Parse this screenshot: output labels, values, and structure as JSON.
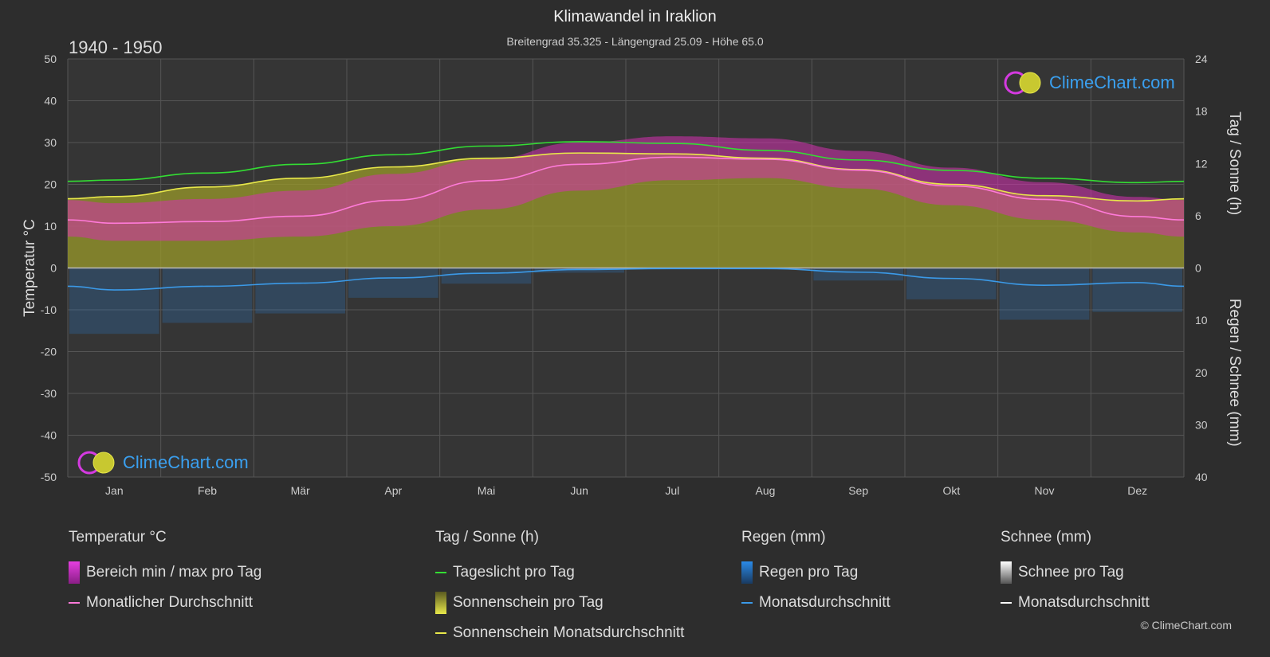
{
  "title": "Klimawandel in Iraklion",
  "subtitle": "Breitengrad 35.325 - Längengrad 25.09 - Höhe 65.0",
  "period": "1940 - 1950",
  "logo_text": "ClimeChart.com",
  "copyright": "© ClimeChart.com",
  "colors": {
    "background": "#2d2d2d",
    "grid": "#555555",
    "daylight": "#33dd33",
    "sunshine_fill": "#9a9a2a",
    "sunshine_line": "#e8e84a",
    "temp_range": "#d62fb0",
    "temp_avg": "#ff7ad9",
    "rain": "#2a7fd4",
    "rain_avg": "#3b9ae8",
    "snow_avg": "#ffffff"
  },
  "chart_data": {
    "type": "area",
    "categories": [
      "Jan",
      "Feb",
      "Mär",
      "Apr",
      "Mai",
      "Jun",
      "Jul",
      "Aug",
      "Sep",
      "Okt",
      "Nov",
      "Dez"
    ],
    "axes": {
      "left": {
        "label": "Temperatur °C",
        "range": [
          -50,
          50
        ],
        "ticks": [
          "50",
          "40",
          "30",
          "20",
          "10",
          "0",
          "-10",
          "-20",
          "-30",
          "-40",
          "-50"
        ]
      },
      "right_top": {
        "label": "Tag / Sonne (h)",
        "range": [
          0,
          24
        ],
        "ticks": [
          "24",
          "18",
          "12",
          "6",
          "0"
        ]
      },
      "right_bottom": {
        "label": "Regen / Schnee (mm)",
        "range": [
          0,
          40
        ],
        "ticks": [
          "10",
          "20",
          "30",
          "40"
        ]
      }
    },
    "grid": true,
    "series": [
      {
        "name": "Tageslicht pro Tag",
        "unit": "h",
        "values": [
          10.1,
          10.9,
          11.9,
          13.0,
          14.0,
          14.5,
          14.3,
          13.5,
          12.4,
          11.2,
          10.3,
          9.8
        ]
      },
      {
        "name": "Sonnenschein Monatsdurchschnitt",
        "unit": "h",
        "values": [
          8.2,
          9.3,
          10.3,
          11.6,
          12.6,
          13.2,
          13.1,
          12.6,
          11.3,
          9.6,
          8.3,
          7.7
        ]
      },
      {
        "name": "Monatlicher Durchschnitt",
        "unit": "°C",
        "values": [
          10.7,
          11.1,
          12.4,
          16.2,
          20.9,
          24.8,
          26.5,
          26.0,
          23.4,
          19.6,
          16.4,
          12.3
        ]
      },
      {
        "name": "Temp max (Bereich)",
        "unit": "°C",
        "values": [
          15.5,
          16.5,
          18.5,
          22.5,
          26.0,
          30.0,
          31.5,
          31.0,
          28.0,
          24.0,
          20.5,
          17.0
        ]
      },
      {
        "name": "Temp min (Bereich)",
        "unit": "°C",
        "values": [
          6.5,
          6.5,
          7.5,
          10.0,
          14.0,
          18.5,
          21.0,
          21.5,
          19.0,
          15.0,
          11.5,
          8.5
        ]
      },
      {
        "name": "Regen Monatsdurchschnitt",
        "unit": "mm",
        "values": [
          4.2,
          3.5,
          2.9,
          1.9,
          1.0,
          0.3,
          0.1,
          0.1,
          0.8,
          2.0,
          3.3,
          2.8
        ]
      },
      {
        "name": "Schnee Monatsdurchschnitt",
        "unit": "mm",
        "values": [
          0,
          0,
          0,
          0,
          0,
          0,
          0,
          0,
          0,
          0,
          0,
          0
        ]
      }
    ]
  },
  "legend": {
    "temperature": {
      "title": "Temperatur °C",
      "items": [
        "Bereich min / max pro Tag",
        "Monatlicher Durchschnitt"
      ]
    },
    "sun": {
      "title": "Tag / Sonne (h)",
      "items": [
        "Tageslicht pro Tag",
        "Sonnenschein pro Tag",
        "Sonnenschein Monatsdurchschnitt"
      ]
    },
    "rain": {
      "title": "Regen (mm)",
      "items": [
        "Regen pro Tag",
        "Monatsdurchschnitt"
      ]
    },
    "snow": {
      "title": "Schnee (mm)",
      "items": [
        "Schnee pro Tag",
        "Monatsdurchschnitt"
      ]
    }
  }
}
